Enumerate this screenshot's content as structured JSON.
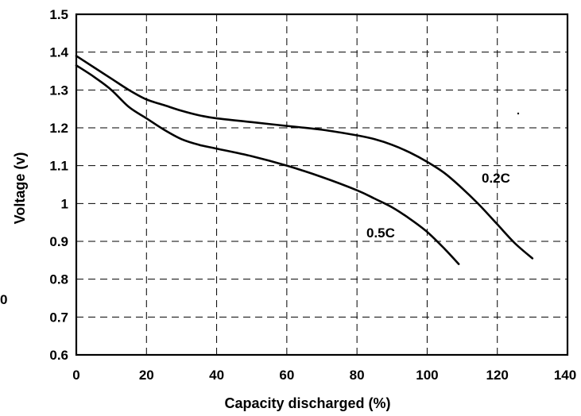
{
  "chart_data": {
    "type": "line",
    "title": "",
    "xlabel": "Capacity discharged (%)",
    "ylabel": "Voltage (v)",
    "xlim": [
      0,
      140
    ],
    "ylim": [
      0.6,
      1.5
    ],
    "x_ticks": [
      0,
      20,
      40,
      60,
      80,
      100,
      120,
      140
    ],
    "y_ticks": [
      0.6,
      0.7,
      0.8,
      0.9,
      1,
      1.1,
      1.2,
      1.3,
      1.4,
      1.5
    ],
    "x_tick_labels": [
      "0",
      "20",
      "40",
      "60",
      "80",
      "100",
      "120",
      "140"
    ],
    "y_tick_labels": [
      "0.6",
      "0.7",
      "0.8",
      "0.9",
      "1",
      "1.1",
      "1.2",
      "1.3",
      "1.4",
      "1.5"
    ],
    "grid": true,
    "grid_style": "dashed",
    "legend": "none (series labeled directly on curves)",
    "stray_text": "0",
    "series": [
      {
        "name": "0.2C",
        "color": "#000000",
        "x": [
          0,
          5,
          10,
          15,
          20,
          25,
          30,
          35,
          40,
          50,
          60,
          70,
          80,
          85,
          90,
          95,
          100,
          105,
          110,
          115,
          120,
          125,
          130
        ],
        "y": [
          1.39,
          1.36,
          1.33,
          1.3,
          1.275,
          1.26,
          1.245,
          1.233,
          1.225,
          1.215,
          1.205,
          1.195,
          1.18,
          1.17,
          1.155,
          1.135,
          1.11,
          1.08,
          1.04,
          0.995,
          0.945,
          0.895,
          0.855
        ]
      },
      {
        "name": "0.5C",
        "color": "#000000",
        "x": [
          0,
          5,
          10,
          15,
          20,
          25,
          30,
          35,
          40,
          50,
          60,
          70,
          80,
          85,
          90,
          95,
          100,
          105,
          109
        ],
        "y": [
          1.365,
          1.335,
          1.3,
          1.255,
          1.225,
          1.195,
          1.17,
          1.155,
          1.145,
          1.125,
          1.1,
          1.07,
          1.035,
          1.013,
          0.99,
          0.96,
          0.925,
          0.88,
          0.84
        ]
      }
    ]
  }
}
